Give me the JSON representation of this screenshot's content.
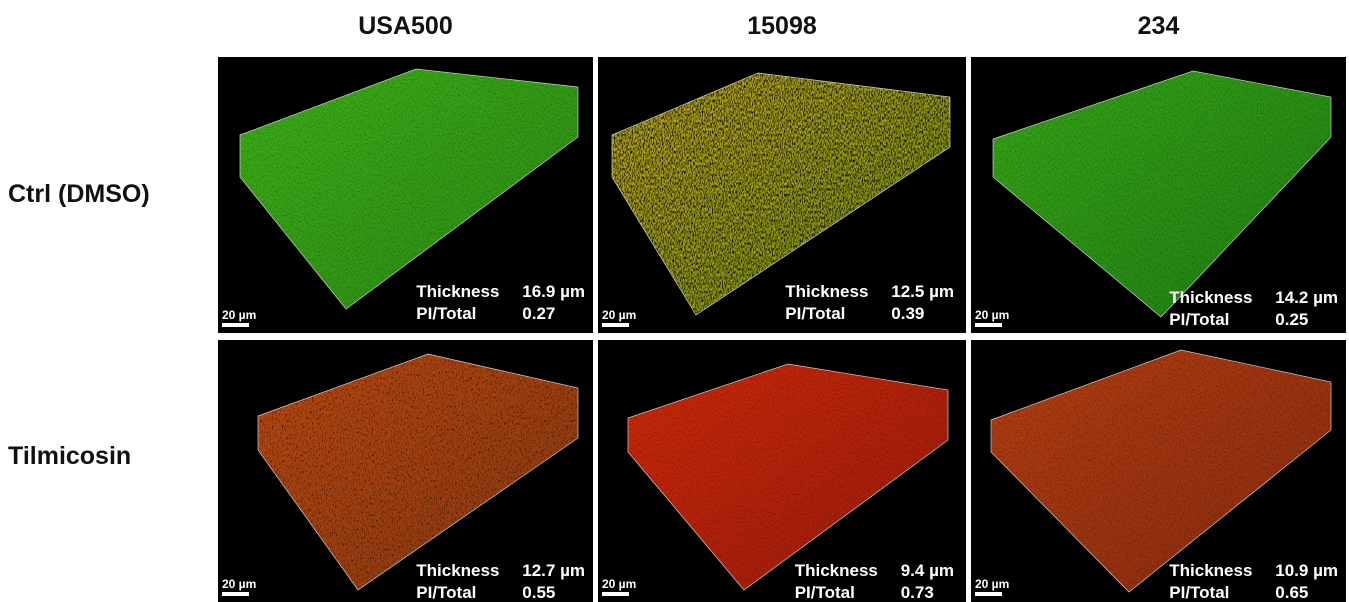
{
  "columns": [
    "USA500",
    "15098",
    "234"
  ],
  "rows": [
    {
      "label": "Ctrl (DMSO)",
      "panels": [
        {
          "scale_bar": "20 µm",
          "thickness_label": "Thickness",
          "thickness": "16.9 µm",
          "ratio_label": "PI/Total",
          "ratio": "0.27"
        },
        {
          "scale_bar": "20 µm",
          "thickness_label": "Thickness",
          "thickness": "12.5 µm",
          "ratio_label": "PI/Total",
          "ratio": "0.39"
        },
        {
          "scale_bar": "20 µm",
          "thickness_label": "Thickness",
          "thickness": "14.2 µm",
          "ratio_label": "PI/Total",
          "ratio": "0.25"
        }
      ]
    },
    {
      "label": "Tilmicosin",
      "panels": [
        {
          "scale_bar": "20 µm",
          "thickness_label": "Thickness",
          "thickness": "12.7 µm",
          "ratio_label": "PI/Total",
          "ratio": "0.55"
        },
        {
          "scale_bar": "20 µm",
          "thickness_label": "Thickness",
          "thickness": "9.4 µm",
          "ratio_label": "PI/Total",
          "ratio": "0.73"
        },
        {
          "scale_bar": "20 µm",
          "thickness_label": "Thickness",
          "thickness": "10.9 µm",
          "ratio_label": "PI/Total",
          "ratio": "0.65"
        }
      ]
    }
  ]
}
